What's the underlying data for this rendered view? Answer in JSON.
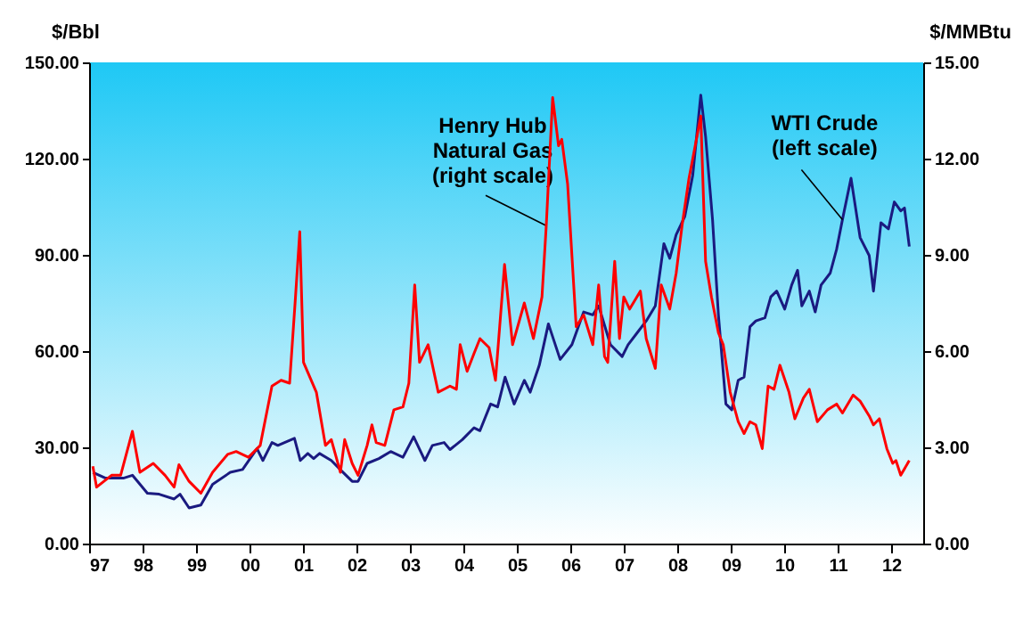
{
  "chart_data": {
    "type": "line",
    "ylabel": "$/Bbl",
    "y2label": "$/MMBtu",
    "xlim": [
      1997,
      2012.6
    ],
    "xticks": [
      {
        "value": 1997,
        "label": "97"
      },
      {
        "value": 1998,
        "label": "98"
      },
      {
        "value": 1999,
        "label": "99"
      },
      {
        "value": 2000,
        "label": "00"
      },
      {
        "value": 2001,
        "label": "01"
      },
      {
        "value": 2002,
        "label": "02"
      },
      {
        "value": 2003,
        "label": "03"
      },
      {
        "value": 2004,
        "label": "04"
      },
      {
        "value": 2005,
        "label": "05"
      },
      {
        "value": 2006,
        "label": "06"
      },
      {
        "value": 2007,
        "label": "07"
      },
      {
        "value": 2008,
        "label": "08"
      },
      {
        "value": 2009,
        "label": "09"
      },
      {
        "value": 2010,
        "label": "10"
      },
      {
        "value": 2011,
        "label": "11"
      },
      {
        "value": 2012,
        "label": "12"
      }
    ],
    "ylim": [
      0,
      150
    ],
    "yticks": [
      {
        "value": 0,
        "label": "0.00"
      },
      {
        "value": 30,
        "label": "30.00"
      },
      {
        "value": 60,
        "label": "60.00"
      },
      {
        "value": 90,
        "label": "90.00"
      },
      {
        "value": 120,
        "label": "120.00"
      },
      {
        "value": 150,
        "label": "150.00"
      }
    ],
    "y2lim": [
      0,
      15
    ],
    "y2ticks": [
      {
        "value": 0,
        "label": "0.00"
      },
      {
        "value": 3,
        "label": "3.00"
      },
      {
        "value": 6,
        "label": "6.00"
      },
      {
        "value": 9,
        "label": "9.00"
      },
      {
        "value": 12,
        "label": "12.00"
      },
      {
        "value": 15,
        "label": "15.00"
      }
    ],
    "grid": false,
    "series": [
      {
        "color": "#1a1a80",
        "x": [
          1997.07,
          1997.31,
          1997.64,
          1997.81,
          1998.09,
          1998.31,
          1998.59,
          1998.7,
          1998.87,
          1999.09,
          1999.31,
          1999.64,
          1999.87,
          2000.14,
          2000.25,
          2000.42,
          2000.53,
          2000.84,
          2000.95,
          2001.09,
          2001.2,
          2001.31,
          2001.53,
          2001.75,
          2001.92,
          2002.03,
          2002.2,
          2002.42,
          2002.64,
          2002.87,
          2003.07,
          2003.28,
          2003.42,
          2003.64,
          2003.75,
          2003.98,
          2004.2,
          2004.31,
          2004.51,
          2004.64,
          2004.78,
          2004.95,
          2005.14,
          2005.25,
          2005.42,
          2005.59,
          2005.81,
          2006.03,
          2006.25,
          2006.42,
          2006.53,
          2006.75,
          2006.97,
          2007.08,
          2007.25,
          2007.42,
          2007.59,
          2007.75,
          2007.86,
          2007.98,
          2008.14,
          2008.29,
          2008.44,
          2008.53,
          2008.66,
          2008.77,
          2008.91,
          2009.02,
          2009.14,
          2009.25,
          2009.36,
          2009.47,
          2009.64,
          2009.75,
          2009.86,
          2010.01,
          2010.14,
          2010.25,
          2010.33,
          2010.47,
          2010.58,
          2010.69,
          2010.86,
          2010.98,
          2011.09,
          2011.25,
          2011.42,
          2011.59,
          2011.67,
          2011.81,
          2011.95,
          2012.06,
          2012.18,
          2012.25,
          2012.34
        ],
        "values": [
          22.2,
          20.4,
          20.4,
          21.3,
          15.7,
          15.4,
          13.9,
          15.4,
          11.1,
          12.0,
          18.5,
          22.2,
          23.1,
          29.6,
          25.9,
          31.5,
          30.6,
          32.8,
          25.9,
          28.1,
          26.5,
          28.1,
          25.9,
          22.2,
          19.4,
          19.4,
          25.0,
          26.5,
          28.7,
          26.9,
          33.3,
          25.9,
          30.6,
          31.5,
          29.3,
          32.4,
          36.1,
          35.2,
          43.5,
          42.6,
          51.9,
          43.5,
          50.9,
          47.2,
          55.6,
          68.5,
          57.4,
          62.0,
          72.2,
          71.3,
          74.1,
          62.0,
          58.3,
          62.0,
          65.7,
          69.4,
          74.1,
          93.5,
          88.9,
          96.3,
          101.9,
          114.8,
          139.8,
          126.9,
          101.0,
          71.3,
          43.5,
          41.7,
          50.9,
          51.9,
          67.6,
          69.4,
          70.4,
          76.9,
          78.7,
          73.1,
          80.6,
          85.2,
          74.1,
          78.7,
          72.2,
          80.6,
          84.3,
          91.7,
          101.0,
          113.9,
          95.4,
          89.8,
          78.7,
          100.0,
          98.1,
          106.5,
          103.7,
          104.6,
          92.6
        ]
      },
      {
        "color": "#ff0000",
        "axis": "y2",
        "x": [
          1997.07,
          1997.14,
          1997.42,
          1997.59,
          1997.81,
          1997.95,
          1998.2,
          1998.42,
          1998.59,
          1998.68,
          1998.87,
          1999.09,
          1999.31,
          1999.59,
          1999.75,
          1999.98,
          2000.2,
          2000.42,
          2000.59,
          2000.75,
          2000.86,
          2000.94,
          2001.01,
          2001.25,
          2001.42,
          2001.53,
          2001.7,
          2001.78,
          2001.92,
          2002.03,
          2002.2,
          2002.29,
          2002.37,
          2002.53,
          2002.7,
          2002.87,
          2002.98,
          2003.09,
          2003.18,
          2003.34,
          2003.53,
          2003.75,
          2003.87,
          2003.94,
          2004.07,
          2004.2,
          2004.31,
          2004.48,
          2004.6,
          2004.77,
          2004.92,
          2005.14,
          2005.31,
          2005.47,
          2005.55,
          2005.67,
          2005.78,
          2005.84,
          2005.95,
          2006.11,
          2006.25,
          2006.42,
          2006.53,
          2006.64,
          2006.7,
          2006.83,
          2006.92,
          2007.0,
          2007.11,
          2007.31,
          2007.42,
          2007.59,
          2007.7,
          2007.86,
          2007.98,
          2008.09,
          2008.22,
          2008.37,
          2008.44,
          2008.53,
          2008.64,
          2008.77,
          2008.86,
          2008.99,
          2009.14,
          2009.25,
          2009.36,
          2009.47,
          2009.59,
          2009.7,
          2009.81,
          2009.92,
          2010.09,
          2010.2,
          2010.36,
          2010.47,
          2010.62,
          2010.81,
          2010.98,
          2011.09,
          2011.29,
          2011.42,
          2011.59,
          2011.67,
          2011.78,
          2011.92,
          2012.03,
          2012.09,
          2012.18,
          2012.34
        ],
        "values": [
          2.41,
          1.76,
          2.13,
          2.13,
          3.5,
          2.22,
          2.5,
          2.13,
          1.76,
          2.46,
          1.94,
          1.57,
          2.22,
          2.78,
          2.87,
          2.69,
          3.06,
          4.91,
          5.09,
          5.0,
          7.69,
          9.72,
          5.65,
          4.72,
          3.06,
          3.24,
          2.22,
          3.24,
          2.5,
          2.13,
          3.06,
          3.7,
          3.15,
          3.06,
          4.17,
          4.26,
          5.0,
          8.06,
          5.65,
          6.2,
          4.72,
          4.91,
          4.81,
          6.2,
          5.37,
          5.93,
          6.39,
          6.11,
          5.09,
          8.7,
          6.2,
          7.5,
          6.39,
          7.69,
          9.91,
          13.9,
          12.4,
          12.6,
          11.2,
          6.76,
          7.13,
          6.2,
          8.06,
          5.83,
          5.65,
          8.8,
          6.39,
          7.69,
          7.31,
          7.87,
          6.39,
          5.46,
          8.06,
          7.31,
          8.43,
          9.91,
          11.39,
          12.7,
          13.33,
          8.8,
          7.69,
          6.57,
          6.2,
          4.72,
          3.8,
          3.43,
          3.8,
          3.7,
          2.96,
          4.91,
          4.81,
          5.56,
          4.72,
          3.89,
          4.54,
          4.81,
          3.8,
          4.17,
          4.35,
          4.07,
          4.63,
          4.44,
          3.98,
          3.7,
          3.89,
          2.96,
          2.5,
          2.59,
          2.13,
          2.59
        ]
      }
    ],
    "annotations": [
      {
        "text": "Henry Hub\nNatural Gas\n(right scale)",
        "x": 2005.55,
        "y": 99.1
      },
      {
        "text": "WTI Crude\n(left scale)",
        "x": 2011.09,
        "y": 101.0
      }
    ]
  }
}
